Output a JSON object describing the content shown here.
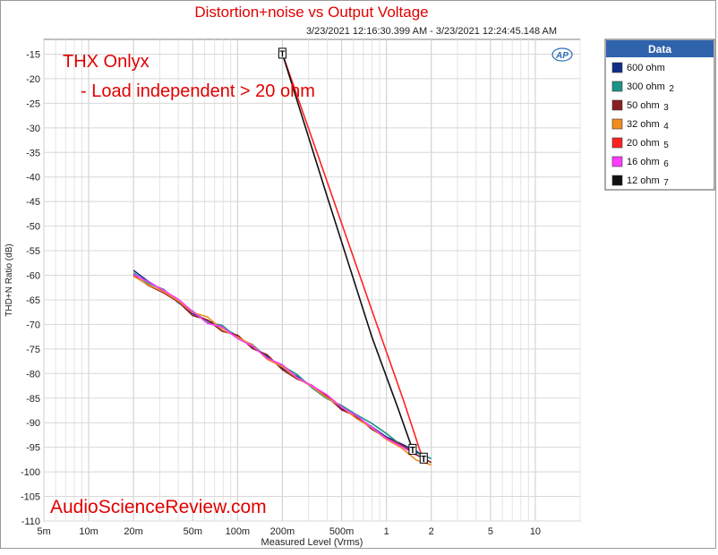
{
  "chart_data": {
    "type": "line",
    "title": "Distortion+noise vs Output Voltage",
    "subtitle": "3/23/2021 12:16:30.399 AM - 3/23/2021 12:24:45.148 AM",
    "xlabel": "Measured Level (Vrms)",
    "ylabel": "THD+N Ratio (dB)",
    "x_scale": "log",
    "xlim": [
      0.005,
      20
    ],
    "ylim": [
      -110,
      -12
    ],
    "x_ticks": [
      {
        "value": 0.005,
        "label": "5m"
      },
      {
        "value": 0.01,
        "label": "10m"
      },
      {
        "value": 0.02,
        "label": "20m"
      },
      {
        "value": 0.05,
        "label": "50m"
      },
      {
        "value": 0.1,
        "label": "100m"
      },
      {
        "value": 0.2,
        "label": "200m"
      },
      {
        "value": 0.5,
        "label": "500m"
      },
      {
        "value": 1,
        "label": "1"
      },
      {
        "value": 2,
        "label": "2"
      },
      {
        "value": 5,
        "label": "5"
      },
      {
        "value": 10,
        "label": "10"
      }
    ],
    "y_ticks": [
      -15,
      -20,
      -25,
      -30,
      -35,
      -40,
      -45,
      -50,
      -55,
      -60,
      -65,
      -70,
      -75,
      -80,
      -85,
      -90,
      -95,
      -100,
      -105,
      -110
    ],
    "grid": true,
    "legend_title": "Data",
    "legend_position": "right",
    "annotations": {
      "heading": "THX Onlyx",
      "note": "- Load independent > 20 ohm",
      "watermark": "AudioScienceReview.com",
      "logo": "AP"
    },
    "marker_labels": [
      "T",
      "T",
      "T"
    ],
    "series": [
      {
        "name": "600 ohm",
        "color": "#0f2f86",
        "x": [
          0.02,
          0.025,
          0.032,
          0.04,
          0.05,
          0.063,
          0.079,
          0.1,
          0.126,
          0.158,
          0.2,
          0.251,
          0.316,
          0.398,
          0.501,
          0.631,
          0.794,
          1.0,
          1.259,
          1.585,
          1.8
        ],
        "y": [
          -59,
          -61.2,
          -63.2,
          -65.1,
          -67.8,
          -69.2,
          -70.6,
          -72.4,
          -74.6,
          -76.5,
          -78.9,
          -80.6,
          -82.6,
          -84.8,
          -87.1,
          -88.9,
          -90.8,
          -92.9,
          -94.3,
          -95.8,
          -96.9
        ]
      },
      {
        "name": "300 ohm",
        "color": "#1b9589",
        "x": [
          0.02,
          0.025,
          0.032,
          0.04,
          0.05,
          0.063,
          0.079,
          0.1,
          0.126,
          0.158,
          0.2,
          0.251,
          0.316,
          0.398,
          0.501,
          0.631,
          0.794,
          1.0,
          1.259,
          1.585,
          2.0
        ],
        "y": [
          -59.5,
          -61.6,
          -62.9,
          -65.6,
          -67.3,
          -69.6,
          -70.2,
          -72.8,
          -74.1,
          -76.8,
          -78.4,
          -80.2,
          -82.9,
          -85.1,
          -86.5,
          -88.4,
          -90.1,
          -92.2,
          -94.6,
          -96.1,
          -97.3
        ]
      },
      {
        "name": "50 ohm",
        "color": "#8b1f1f",
        "x": [
          0.02,
          0.025,
          0.032,
          0.04,
          0.05,
          0.063,
          0.079,
          0.1,
          0.126,
          0.158,
          0.2,
          0.251,
          0.316,
          0.398,
          0.501,
          0.631,
          0.794,
          1.0,
          1.259,
          1.585,
          2.0
        ],
        "y": [
          -60,
          -62,
          -63.6,
          -65.4,
          -68.2,
          -69.1,
          -71.4,
          -72.2,
          -74.9,
          -76.2,
          -79.2,
          -81.1,
          -82.4,
          -84.6,
          -87.4,
          -88.7,
          -91.3,
          -93.1,
          -94.5,
          -96.5,
          -98.1
        ]
      },
      {
        "name": "32 ohm",
        "color": "#f28c1f",
        "x": [
          0.02,
          0.025,
          0.032,
          0.04,
          0.05,
          0.063,
          0.079,
          0.1,
          0.126,
          0.158,
          0.2,
          0.251,
          0.316,
          0.398,
          0.501,
          0.631,
          0.794,
          1.0,
          1.259,
          1.585,
          2.0
        ],
        "y": [
          -60.2,
          -61.9,
          -63.4,
          -65.2,
          -67.6,
          -68.5,
          -71.1,
          -72.6,
          -74.2,
          -77.1,
          -78.6,
          -80.9,
          -82.7,
          -84.9,
          -86.8,
          -89.2,
          -91.0,
          -93.4,
          -95.1,
          -97.6,
          -98.6
        ]
      },
      {
        "name": "20 ohm",
        "color": "#ff2222",
        "x": [
          0.2,
          0.4,
          0.8,
          1.3,
          1.75
        ],
        "y": [
          -14.9,
          -41.0,
          -67.2,
          -85.4,
          -97.3
        ]
      },
      {
        "name": "16 ohm",
        "color": "#ff3cff",
        "x": [
          0.02,
          0.025,
          0.032,
          0.04,
          0.05,
          0.063,
          0.079,
          0.1,
          0.126,
          0.158,
          0.2,
          0.251,
          0.316,
          0.398,
          0.501,
          0.631,
          0.794,
          1.0,
          1.259,
          1.585
        ],
        "y": [
          -59.8,
          -61.3,
          -63.1,
          -64.9,
          -67.4,
          -69.8,
          -70.5,
          -72.9,
          -74.4,
          -76.9,
          -78.2,
          -80.8,
          -82.5,
          -84.3,
          -86.9,
          -88.6,
          -90.9,
          -93.2,
          -94.8,
          -96.6
        ]
      },
      {
        "name": "12 ohm",
        "color": "#111111",
        "x": [
          0.2,
          0.4,
          0.8,
          1.2,
          1.5
        ],
        "y": [
          -14.9,
          -44.0,
          -72.6,
          -87.2,
          -95.5
        ]
      }
    ]
  }
}
